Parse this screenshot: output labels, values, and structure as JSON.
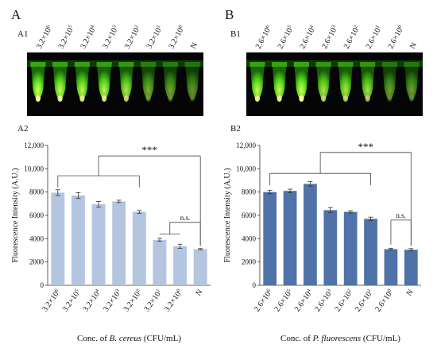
{
  "figure": {
    "panel_a_label": "A",
    "panel_b_label": "B",
    "photo_a_label": "A1",
    "photo_b_label": "B1",
    "chart_a_label": "A2",
    "chart_b_label": "B2"
  },
  "photos": [
    {
      "tube_labels": [
        {
          "base": "3.2×10",
          "exp": "6"
        },
        {
          "base": "3.2×10",
          "exp": "5"
        },
        {
          "base": "3.2×10",
          "exp": "4"
        },
        {
          "base": "3.2×10",
          "exp": "3"
        },
        {
          "base": "3.2×10",
          "exp": "2"
        },
        {
          "base": "3.2×10",
          "exp": "1"
        },
        {
          "base": "3.2×10",
          "exp": "0"
        },
        {
          "base": "N",
          "exp": ""
        }
      ],
      "tube_glow": [
        1.0,
        0.95,
        0.9,
        0.9,
        0.82,
        0.45,
        0.38,
        0.3
      ]
    },
    {
      "tube_labels": [
        {
          "base": "2.6×10",
          "exp": "6"
        },
        {
          "base": "2.6×10",
          "exp": "5"
        },
        {
          "base": "2.6×10",
          "exp": "4"
        },
        {
          "base": "2.6×10",
          "exp": "3"
        },
        {
          "base": "2.6×10",
          "exp": "2"
        },
        {
          "base": "2.6×10",
          "exp": "1"
        },
        {
          "base": "2.6×10",
          "exp": "0"
        },
        {
          "base": "N",
          "exp": ""
        }
      ],
      "tube_glow": [
        0.95,
        0.95,
        1.0,
        0.8,
        0.8,
        0.75,
        0.35,
        0.35
      ]
    }
  ],
  "chart_data": [
    {
      "type": "bar",
      "categories": [
        {
          "base": "3.2×10",
          "exp": "6"
        },
        {
          "base": "3.2×10",
          "exp": "5"
        },
        {
          "base": "3.2×10",
          "exp": "4"
        },
        {
          "base": "3.2×10",
          "exp": "3"
        },
        {
          "base": "3.2×10",
          "exp": "2"
        },
        {
          "base": "3.2×10",
          "exp": "1"
        },
        {
          "base": "3.2×10",
          "exp": "0"
        },
        {
          "base": "N",
          "exp": ""
        }
      ],
      "values": [
        7950,
        7700,
        6950,
        7200,
        6300,
        3900,
        3350,
        3100
      ],
      "errors": [
        250,
        250,
        250,
        100,
        120,
        130,
        180,
        50
      ],
      "ylabel": "Fluorescence Intensity (A.U.)",
      "xlabel": {
        "prefix": "Conc. of ",
        "species": "B. cereus",
        "suffix": "  (CFU/mL)"
      },
      "ylim": [
        0,
        12000
      ],
      "yticks": [
        0,
        2000,
        4000,
        6000,
        8000,
        10000,
        12000
      ],
      "ytick_labels": [
        "0",
        "2000",
        "4000",
        "6000",
        "8000",
        "10,000",
        "12,000"
      ],
      "bar_color": "#b4c5e0",
      "annotations": [
        {
          "label": "***",
          "group_from": 0,
          "group_to": 4,
          "group_level": 9400,
          "to": 7,
          "top_level": 11100,
          "start_level": 8400,
          "end_level": 3400
        },
        {
          "label": "n.s.",
          "group_from": 5,
          "group_to": 6,
          "group_level": 4400,
          "to": 7,
          "top_level": 5400,
          "start_level": 4400,
          "end_level": 3400
        }
      ]
    },
    {
      "type": "bar",
      "categories": [
        {
          "base": "2.6×10",
          "exp": "6"
        },
        {
          "base": "2.6×10",
          "exp": "5"
        },
        {
          "base": "2.6×10",
          "exp": "4"
        },
        {
          "base": "2.6×10",
          "exp": "3"
        },
        {
          "base": "2.6×10",
          "exp": "2"
        },
        {
          "base": "2.6×10",
          "exp": "1"
        },
        {
          "base": "2.6×10",
          "exp": "0"
        },
        {
          "base": "N",
          "exp": ""
        }
      ],
      "values": [
        8000,
        8100,
        8700,
        6450,
        6300,
        5700,
        3100,
        3050
      ],
      "errors": [
        150,
        150,
        200,
        220,
        100,
        150,
        80,
        100
      ],
      "ylabel": "Fluorescence Intensity (A.U.)",
      "xlabel": {
        "prefix": "Conc. of ",
        "species": "P. fluorescens",
        "suffix": "  (CFU/mL)"
      },
      "ylim": [
        0,
        12000
      ],
      "yticks": [
        0,
        2000,
        4000,
        6000,
        8000,
        10000,
        12000
      ],
      "ytick_labels": [
        "0",
        "2000",
        "4000",
        "6000",
        "8000",
        "10,000",
        "12,000"
      ],
      "bar_color": "#4f73a8",
      "annotations": [
        {
          "label": "***",
          "group_from": 0,
          "group_to": 5,
          "group_level": 9600,
          "to": 7,
          "top_level": 11400,
          "start_level": 8600,
          "end_level": 3400
        },
        {
          "label": "n.s.",
          "group_from": 6,
          "group_to": 6,
          "group_level": 3500,
          "to": 7,
          "top_level": 5600,
          "start_level": 3500,
          "end_level": 3400
        }
      ]
    }
  ]
}
